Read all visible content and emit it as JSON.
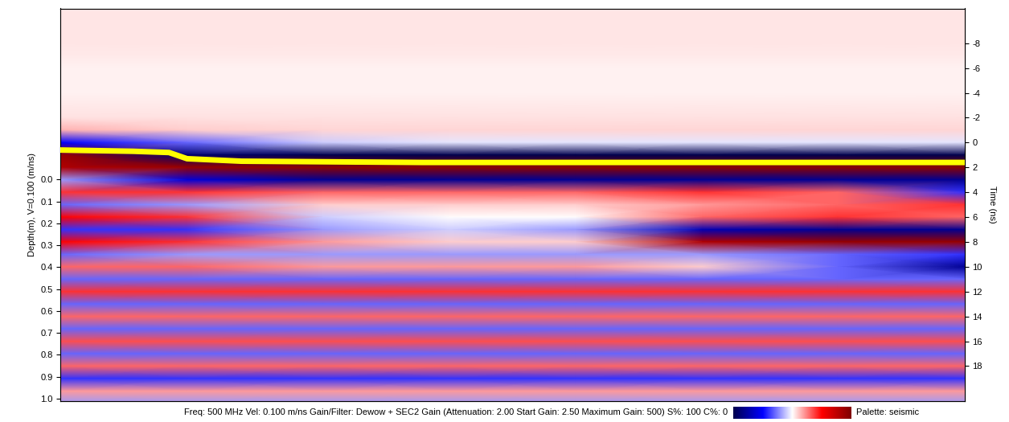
{
  "chart_data": {
    "type": "heatmap",
    "y_label": "Depth(m), V=0.100 (m/ns)",
    "ylim": [
      -0.78,
      1.01
    ],
    "yticks": [
      0.0,
      0.1,
      0.2,
      0.3,
      0.4,
      0.5,
      0.6,
      0.7,
      0.8,
      0.9,
      1.0
    ],
    "y2_label": "Time (ns)",
    "y2lim": [
      -10.8,
      20.8
    ],
    "y2ticks": [
      -8,
      -6,
      -4,
      -2,
      0,
      2,
      4,
      6,
      8,
      10,
      12,
      14,
      16,
      18
    ],
    "xlim": [
      0,
      100
    ],
    "tick_labels": "y",
    "footer": "Freq: 500 MHz Vel: 0.100 m/ns Gain/Filter: Dewow + SEC2 Gain (Attenuation: 2.00 Start Gain: 2.50 Maximum Gain: 500) S%: 100 C%: 0",
    "palette_label": "Palette: seismic",
    "color_range": [
      -1,
      1
    ],
    "cells": {
      "x": [
        0,
        14,
        29,
        43,
        57,
        71,
        86,
        100
      ],
      "time": [
        -11,
        -10,
        -9,
        -8,
        -7,
        -6,
        -5,
        -4,
        -3,
        -2,
        -1,
        0,
        1,
        2,
        3,
        4,
        5,
        6,
        7,
        8,
        9,
        10,
        11,
        12,
        13,
        14,
        15,
        16,
        17,
        18,
        19,
        20,
        21
      ],
      "values": [
        [
          0.05,
          0.05,
          0.05,
          0.05,
          0.05,
          0.05,
          0.05,
          0.05
        ],
        [
          0.05,
          0.05,
          0.05,
          0.05,
          0.05,
          0.05,
          0.05,
          0.05
        ],
        [
          0.05,
          0.05,
          0.05,
          0.05,
          0.05,
          0.05,
          0.05,
          0.05
        ],
        [
          0.05,
          0.05,
          0.05,
          0.05,
          0.05,
          0.05,
          0.05,
          0.05
        ],
        [
          0.04,
          0.04,
          0.04,
          0.04,
          0.04,
          0.04,
          0.04,
          0.04
        ],
        [
          0.03,
          0.03,
          0.03,
          0.03,
          0.03,
          0.03,
          0.03,
          0.03
        ],
        [
          0.03,
          0.03,
          0.03,
          0.03,
          0.03,
          0.03,
          0.03,
          0.03
        ],
        [
          0.03,
          0.03,
          0.03,
          0.03,
          0.03,
          0.03,
          0.03,
          0.03
        ],
        [
          0.04,
          0.04,
          0.04,
          0.04,
          0.04,
          0.04,
          0.04,
          0.04
        ],
        [
          0.06,
          0.06,
          0.06,
          0.06,
          0.06,
          0.06,
          0.06,
          0.06
        ],
        [
          0.15,
          0.1,
          0.08,
          0.08,
          0.08,
          0.08,
          0.08,
          0.08
        ],
        [
          -0.5,
          -0.3,
          -0.1,
          -0.05,
          -0.05,
          -0.05,
          -0.05,
          -0.05
        ],
        [
          0.9,
          -0.9,
          -1,
          -1,
          -1,
          -1,
          -1,
          -1
        ],
        [
          0.8,
          0.9,
          0.95,
          0.95,
          0.95,
          0.95,
          0.95,
          0.95
        ],
        [
          -0.2,
          -0.6,
          -0.8,
          -0.8,
          -0.8,
          -0.8,
          -0.8,
          -0.8
        ],
        [
          0.4,
          0.4,
          0.3,
          0.3,
          0.3,
          0.4,
          0.3,
          -0.4
        ],
        [
          -0.3,
          -0.2,
          0.1,
          0.1,
          0.1,
          0.2,
          0.3,
          0.4
        ],
        [
          0.5,
          0.4,
          -0.1,
          0,
          0,
          0.3,
          0.4,
          0.3
        ],
        [
          -0.4,
          -0.4,
          -0.2,
          -0.1,
          -0.2,
          -0.7,
          -0.8,
          -0.8
        ],
        [
          0.5,
          0.4,
          0.2,
          0.1,
          0.1,
          0.8,
          0.9,
          0.9
        ],
        [
          -0.3,
          -0.2,
          -0.2,
          -0.2,
          -0.2,
          -0.2,
          -0.3,
          -0.4
        ],
        [
          0.3,
          0.3,
          0.2,
          0.2,
          0.2,
          0.1,
          -0.3,
          -0.8
        ],
        [
          -0.3,
          -0.3,
          -0.3,
          -0.3,
          -0.3,
          -0.3,
          -0.3,
          -0.3
        ],
        [
          0.4,
          0.4,
          0.4,
          0.4,
          0.4,
          0.4,
          0.4,
          0.4
        ],
        [
          -0.3,
          -0.3,
          -0.3,
          -0.3,
          -0.3,
          -0.3,
          -0.3,
          -0.3
        ],
        [
          0.3,
          0.3,
          0.3,
          0.3,
          0.3,
          0.3,
          0.3,
          0.3
        ],
        [
          -0.3,
          -0.3,
          -0.3,
          -0.3,
          -0.3,
          -0.3,
          -0.3,
          -0.3
        ],
        [
          0.35,
          0.35,
          0.35,
          0.35,
          0.35,
          0.35,
          0.35,
          0.35
        ],
        [
          -0.3,
          -0.3,
          -0.3,
          -0.3,
          -0.3,
          -0.3,
          -0.3,
          -0.3
        ],
        [
          0.3,
          0.3,
          0.3,
          0.3,
          0.3,
          0.3,
          0.3,
          0.3
        ],
        [
          -0.4,
          -0.4,
          -0.4,
          -0.4,
          -0.4,
          -0.4,
          -0.4,
          -0.4
        ],
        [
          0.2,
          0.2,
          0.2,
          0.2,
          0.2,
          0.2,
          0.2,
          0.2
        ],
        [
          -0.2,
          -0.2,
          -0.2,
          -0.2,
          -0.2,
          -0.2,
          -0.2,
          -0.2
        ]
      ]
    },
    "horizon": {
      "color": "#ffff00",
      "x": [
        0,
        8,
        12,
        14,
        20,
        40,
        100
      ],
      "values": [
        0.6,
        0.7,
        0.8,
        1.3,
        1.5,
        1.6,
        1.6
      ]
    }
  }
}
